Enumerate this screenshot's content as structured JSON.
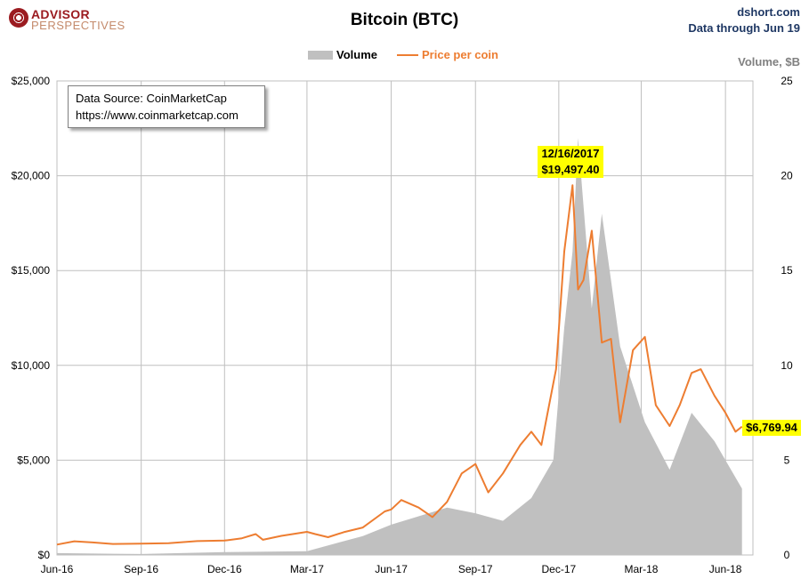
{
  "header": {
    "logo_line1": "ADVISOR",
    "logo_line2": "PERSPECTIVES",
    "site": "dshort.com",
    "data_through": "Data through Jun 19",
    "volume_unit": "Volume, $B"
  },
  "source_box": {
    "line1": "Data Source: CoinMarketCap",
    "line2": "https://www.coinmarketcap.com"
  },
  "annotations": {
    "peak_date": "12/16/2017",
    "peak_value": "$19,497.40",
    "last_value": "$6,769.94"
  },
  "chart_data": {
    "type": "line",
    "title": "Bitcoin (BTC)",
    "legend": [
      "Volume",
      "Price per coin"
    ],
    "legend_placement": "top-center",
    "grid": true,
    "colors": {
      "volume": "#c0c0c0",
      "price": "#ed7d31"
    },
    "x_tick_labels": [
      "Jun-16",
      "Sep-16",
      "Dec-16",
      "Mar-17",
      "Jun-17",
      "Sep-17",
      "Dec-17",
      "Mar-18",
      "Jun-18"
    ],
    "x_tick_dates": [
      "2016-06-01",
      "2016-09-01",
      "2016-12-01",
      "2017-03-01",
      "2017-06-01",
      "2017-09-01",
      "2017-12-01",
      "2018-03-01",
      "2018-06-01"
    ],
    "x_range": [
      "2016-06-01",
      "2018-07-01"
    ],
    "y_left": {
      "ticks": [
        "$0",
        "$5,000",
        "$10,000",
        "$15,000",
        "$20,000",
        "$25,000"
      ],
      "range": [
        0,
        25000
      ]
    },
    "y_right": {
      "ticks": [
        "0",
        "5",
        "10",
        "15",
        "20",
        "25"
      ],
      "range": [
        0,
        25
      ]
    },
    "series": [
      {
        "name": "Price per coin",
        "axis": "left",
        "x": [
          "2016-06-01",
          "2016-06-20",
          "2016-07-10",
          "2016-08-01",
          "2016-09-01",
          "2016-10-01",
          "2016-11-01",
          "2016-12-01",
          "2016-12-20",
          "2017-01-04",
          "2017-01-12",
          "2017-02-01",
          "2017-03-01",
          "2017-03-10",
          "2017-03-24",
          "2017-04-10",
          "2017-05-01",
          "2017-05-25",
          "2017-06-01",
          "2017-06-12",
          "2017-07-01",
          "2017-07-16",
          "2017-08-01",
          "2017-08-17",
          "2017-09-01",
          "2017-09-15",
          "2017-10-01",
          "2017-10-20",
          "2017-11-01",
          "2017-11-12",
          "2017-11-28",
          "2017-12-07",
          "2017-12-16",
          "2017-12-22",
          "2017-12-28",
          "2018-01-06",
          "2018-01-17",
          "2018-01-27",
          "2018-02-06",
          "2018-02-20",
          "2018-03-05",
          "2018-03-17",
          "2018-04-01",
          "2018-04-12",
          "2018-04-25",
          "2018-05-05",
          "2018-05-20",
          "2018-06-01",
          "2018-06-12",
          "2018-06-19"
        ],
        "y": [
          550,
          720,
          660,
          580,
          600,
          620,
          730,
          760,
          880,
          1100,
          800,
          1010,
          1220,
          1100,
          940,
          1200,
          1450,
          2300,
          2400,
          2900,
          2500,
          2000,
          2800,
          4300,
          4800,
          3300,
          4300,
          5800,
          6500,
          5800,
          9800,
          16000,
          19497,
          14000,
          14500,
          17100,
          11200,
          11400,
          7000,
          10800,
          11500,
          7900,
          6800,
          7900,
          9600,
          9800,
          8400,
          7500,
          6500,
          6770
        ]
      },
      {
        "name": "Volume",
        "axis": "right",
        "x": [
          "2016-06-01",
          "2016-09-01",
          "2016-12-01",
          "2017-03-01",
          "2017-05-01",
          "2017-06-01",
          "2017-08-01",
          "2017-09-01",
          "2017-10-01",
          "2017-11-01",
          "2017-11-25",
          "2017-12-07",
          "2017-12-16",
          "2017-12-22",
          "2018-01-06",
          "2018-01-17",
          "2018-02-06",
          "2018-03-05",
          "2018-04-01",
          "2018-04-25",
          "2018-05-20",
          "2018-06-01",
          "2018-06-19"
        ],
        "y": [
          0.1,
          0.05,
          0.15,
          0.2,
          1.0,
          1.6,
          2.5,
          2.2,
          1.8,
          3.0,
          5.0,
          12.0,
          16.0,
          22.0,
          13.0,
          18.0,
          11.0,
          7.0,
          4.5,
          7.5,
          6.0,
          5.0,
          3.5
        ]
      }
    ]
  }
}
